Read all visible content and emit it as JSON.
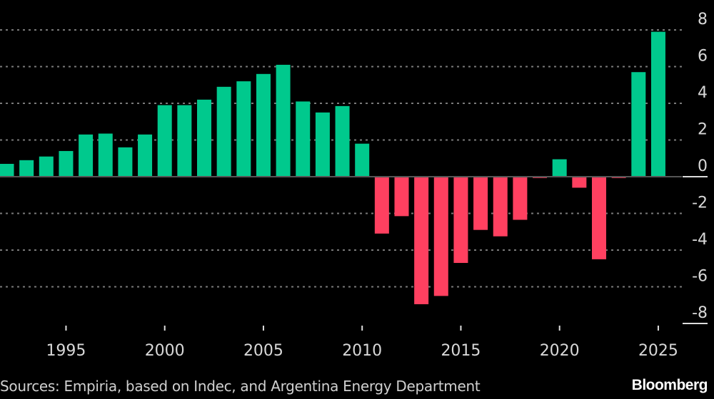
{
  "chart_data": {
    "type": "bar",
    "title": "",
    "xlabel": "",
    "ylabel": "",
    "x": [
      1992,
      1993,
      1994,
      1995,
      1996,
      1997,
      1998,
      1999,
      2000,
      2001,
      2002,
      2003,
      2004,
      2005,
      2006,
      2007,
      2008,
      2009,
      2010,
      2011,
      2012,
      2013,
      2014,
      2015,
      2016,
      2017,
      2018,
      2019,
      2020,
      2021,
      2022,
      2023,
      2024,
      2025
    ],
    "values": [
      0.7,
      0.9,
      1.1,
      1.4,
      2.3,
      2.35,
      1.6,
      2.3,
      3.9,
      3.9,
      4.2,
      4.9,
      5.2,
      5.6,
      6.1,
      4.1,
      3.5,
      3.85,
      1.8,
      -3.1,
      -2.15,
      -6.95,
      -6.5,
      -4.7,
      -2.9,
      -3.25,
      -2.35,
      -0.07,
      0.95,
      -0.6,
      -4.5,
      -0.07,
      5.7,
      7.9
    ],
    "x_ticks": [
      "1995",
      "2000",
      "2005",
      "2010",
      "2015",
      "2020",
      "2025"
    ],
    "x_tick_values": [
      1995,
      2000,
      2005,
      2010,
      2015,
      2020,
      2025
    ],
    "y_ticks": [
      "8",
      "6",
      "4",
      "2",
      "0",
      "-2",
      "-4",
      "-6",
      "-8"
    ],
    "y_tick_values": [
      8,
      6,
      4,
      2,
      0,
      -2,
      -4,
      -6,
      -8
    ],
    "ylim": [
      -8,
      8
    ],
    "xlim": [
      1992,
      2025
    ],
    "grid": true,
    "y_axis_side": "right",
    "colors": {
      "positive": "#00C98D",
      "negative": "#FF4060",
      "grid": "#7a7a7a",
      "text": "#d8d8d8",
      "background": "#000000"
    }
  },
  "footer": {
    "source": "Sources: Empiria, based on Indec, and Argentina Energy Department",
    "brand": "Bloomberg"
  }
}
